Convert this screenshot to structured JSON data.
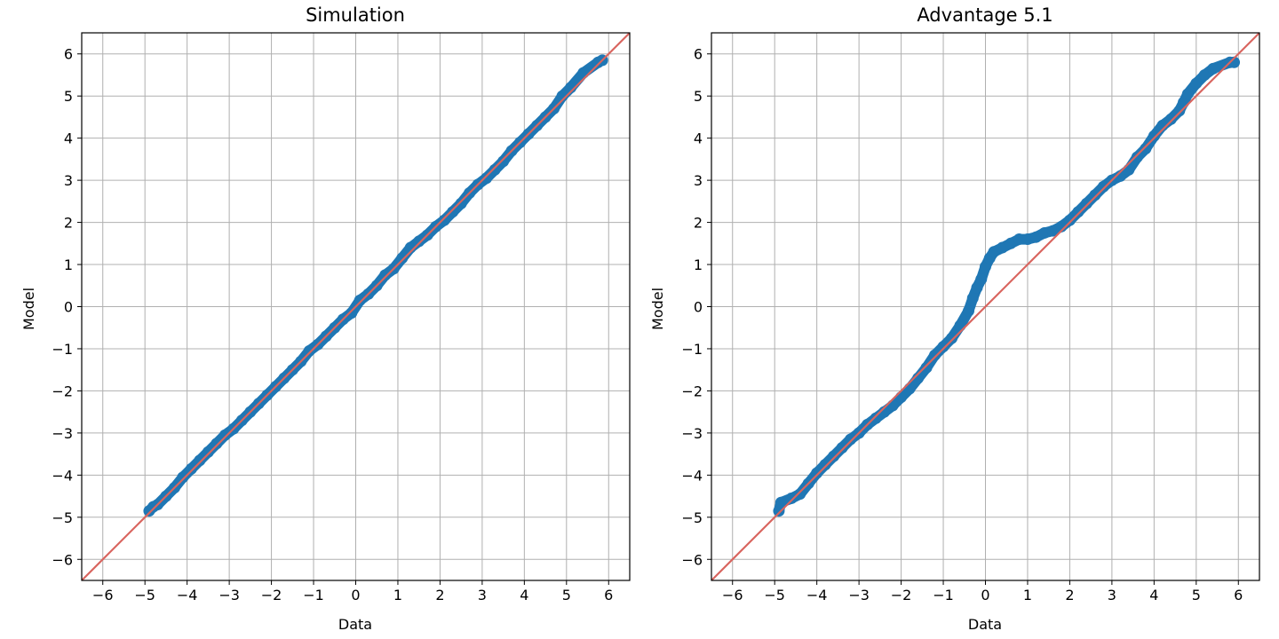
{
  "chart_data": [
    {
      "type": "scatter",
      "title": "Simulation",
      "xlabel": "Data",
      "ylabel": "Model",
      "xlim": [
        -6.5,
        6.5
      ],
      "ylim": [
        -6.5,
        6.5
      ],
      "xticks": [
        -6,
        -5,
        -4,
        -3,
        -2,
        -1,
        0,
        1,
        2,
        3,
        4,
        5,
        6
      ],
      "yticks": [
        -6,
        -5,
        -4,
        -3,
        -2,
        -1,
        0,
        1,
        2,
        3,
        4,
        5,
        6
      ],
      "grid": true,
      "reference_line": {
        "from": [
          -6.5,
          -6.5
        ],
        "to": [
          6.5,
          6.5
        ],
        "color": "#d9655f"
      },
      "marker_color": "#1f77b4",
      "x": [
        -4.9,
        -4.8,
        -4.7,
        -4.5,
        -4.3,
        -4.1,
        -3.9,
        -3.7,
        -3.5,
        -3.3,
        -3.1,
        -2.9,
        -2.7,
        -2.5,
        -2.3,
        -2.1,
        -1.9,
        -1.7,
        -1.5,
        -1.3,
        -1.1,
        -0.9,
        -0.7,
        -0.5,
        -0.3,
        -0.1,
        0.1,
        0.3,
        0.5,
        0.7,
        0.9,
        1.1,
        1.3,
        1.5,
        1.7,
        1.9,
        2.1,
        2.3,
        2.5,
        2.7,
        2.9,
        3.1,
        3.3,
        3.5,
        3.7,
        3.9,
        4.1,
        4.3,
        4.5,
        4.7,
        4.9,
        5.1,
        5.4,
        5.75,
        5.85
      ],
      "y": [
        -4.85,
        -4.75,
        -4.7,
        -4.5,
        -4.3,
        -4.05,
        -3.85,
        -3.65,
        -3.45,
        -3.25,
        -3.05,
        -2.9,
        -2.7,
        -2.5,
        -2.3,
        -2.1,
        -1.9,
        -1.7,
        -1.5,
        -1.3,
        -1.05,
        -0.9,
        -0.7,
        -0.5,
        -0.3,
        -0.15,
        0.15,
        0.3,
        0.5,
        0.75,
        0.9,
        1.15,
        1.4,
        1.55,
        1.7,
        1.9,
        2.05,
        2.25,
        2.45,
        2.7,
        2.9,
        3.05,
        3.25,
        3.45,
        3.7,
        3.9,
        4.1,
        4.3,
        4.5,
        4.7,
        5.0,
        5.2,
        5.55,
        5.8,
        5.85
      ]
    },
    {
      "type": "scatter",
      "title": "Advantage 5.1",
      "xlabel": "Data",
      "ylabel": "Model",
      "xlim": [
        -6.5,
        6.5
      ],
      "ylim": [
        -6.5,
        6.5
      ],
      "xticks": [
        -6,
        -5,
        -4,
        -3,
        -2,
        -1,
        0,
        1,
        2,
        3,
        4,
        5,
        6
      ],
      "yticks": [
        -6,
        -5,
        -4,
        -3,
        -2,
        -1,
        0,
        1,
        2,
        3,
        4,
        5,
        6
      ],
      "grid": true,
      "reference_line": {
        "from": [
          -6.5,
          -6.5
        ],
        "to": [
          6.5,
          6.5
        ],
        "color": "#d9655f"
      },
      "marker_color": "#1f77b4",
      "x": [
        -4.9,
        -4.85,
        -4.6,
        -4.4,
        -4.2,
        -4.0,
        -3.8,
        -3.6,
        -3.4,
        -3.2,
        -3.0,
        -2.8,
        -2.6,
        -2.4,
        -2.2,
        -2.0,
        -1.8,
        -1.6,
        -1.4,
        -1.2,
        -1.0,
        -0.8,
        -0.6,
        -0.4,
        -0.3,
        -0.2,
        -0.1,
        0.0,
        0.1,
        0.2,
        0.4,
        0.6,
        0.8,
        1.0,
        1.2,
        1.4,
        1.6,
        1.8,
        2.0,
        2.2,
        2.4,
        2.6,
        2.8,
        3.0,
        3.2,
        3.4,
        3.6,
        3.8,
        4.0,
        4.2,
        4.4,
        4.6,
        4.7,
        4.8,
        5.0,
        5.2,
        5.4,
        5.8,
        5.9
      ],
      "y": [
        -4.85,
        -4.65,
        -4.55,
        -4.45,
        -4.2,
        -3.95,
        -3.75,
        -3.55,
        -3.35,
        -3.15,
        -3.0,
        -2.8,
        -2.65,
        -2.5,
        -2.35,
        -2.15,
        -1.95,
        -1.7,
        -1.45,
        -1.15,
        -0.95,
        -0.75,
        -0.45,
        -0.1,
        0.2,
        0.45,
        0.65,
        0.95,
        1.15,
        1.3,
        1.4,
        1.5,
        1.6,
        1.6,
        1.65,
        1.75,
        1.8,
        1.9,
        2.05,
        2.25,
        2.45,
        2.65,
        2.85,
        3.0,
        3.1,
        3.25,
        3.55,
        3.75,
        4.05,
        4.3,
        4.45,
        4.65,
        4.85,
        5.05,
        5.3,
        5.5,
        5.65,
        5.8,
        5.8
      ]
    }
  ]
}
